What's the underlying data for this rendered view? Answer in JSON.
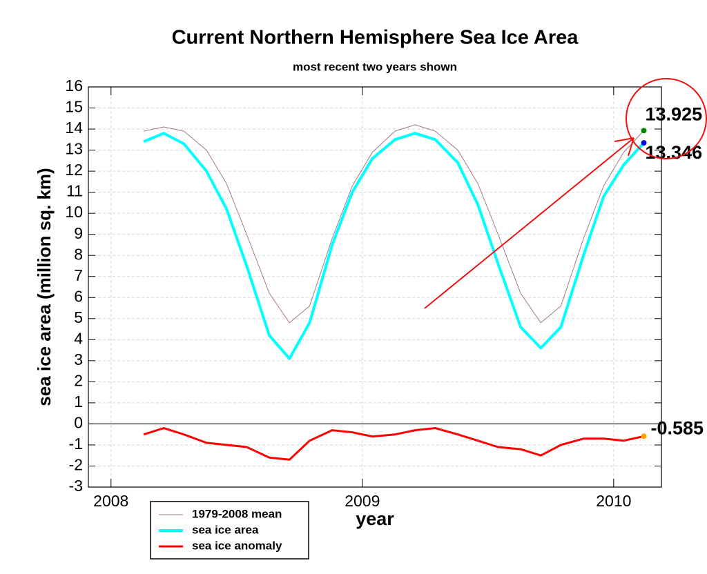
{
  "chart_data": {
    "type": "line",
    "title": "Current Northern Hemisphere Sea Ice Area",
    "subtitle": "most recent two years shown",
    "x_label": "year",
    "y_label": "sea ice area (million sq. km)",
    "x": [
      2008.13,
      2008.21,
      2008.29,
      2008.38,
      2008.46,
      2008.54,
      2008.63,
      2008.71,
      2008.79,
      2008.88,
      2008.96,
      2009.04,
      2009.13,
      2009.21,
      2009.29,
      2009.38,
      2009.46,
      2009.54,
      2009.63,
      2009.71,
      2009.79,
      2009.88,
      2009.96,
      2010.04,
      2010.12
    ],
    "series": [
      {
        "name": "1979-2008 mean",
        "color": "#a07888",
        "values": [
          13.9,
          14.1,
          13.9,
          13.0,
          11.4,
          9.0,
          6.2,
          4.8,
          5.6,
          8.8,
          11.3,
          12.9,
          13.9,
          14.2,
          13.9,
          13.0,
          11.4,
          9.0,
          6.2,
          4.8,
          5.6,
          8.8,
          11.3,
          12.9,
          13.925
        ]
      },
      {
        "name": "sea ice area",
        "color": "#00ffff",
        "values": [
          13.4,
          13.8,
          13.3,
          12.0,
          10.2,
          7.5,
          4.2,
          3.1,
          4.8,
          8.5,
          11.0,
          12.6,
          13.5,
          13.8,
          13.5,
          12.4,
          10.4,
          7.6,
          4.6,
          3.6,
          4.6,
          8.0,
          10.8,
          12.3,
          13.346
        ]
      },
      {
        "name": "sea ice anomaly",
        "color": "#ff0000",
        "values": [
          -0.5,
          -0.2,
          -0.5,
          -0.9,
          -1.0,
          -1.1,
          -1.6,
          -1.7,
          -0.8,
          -0.3,
          -0.4,
          -0.6,
          -0.5,
          -0.3,
          -0.2,
          -0.5,
          -0.8,
          -1.1,
          -1.2,
          -1.5,
          -1.0,
          -0.7,
          -0.7,
          -0.8,
          -0.585
        ]
      }
    ],
    "xlim": [
      2007.91,
      2010.19
    ],
    "xticks": [
      2008,
      2009,
      2010
    ],
    "ylim": [
      -3,
      16
    ],
    "yticks": [
      -3,
      -2,
      -1,
      0,
      1,
      2,
      3,
      4,
      5,
      6,
      7,
      8,
      9,
      10,
      11,
      12,
      13,
      14,
      15,
      16
    ],
    "grid": true
  }
}
